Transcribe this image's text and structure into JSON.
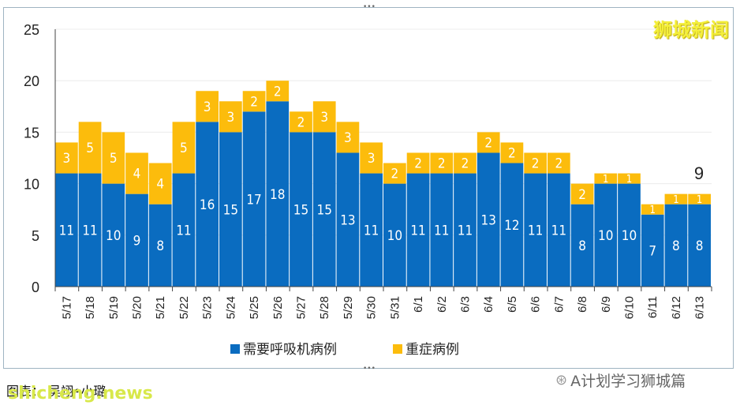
{
  "chart_data": {
    "type": "bar",
    "stacked": true,
    "categories": [
      "5/17",
      "5/18",
      "5/19",
      "5/20",
      "5/21",
      "5/22",
      "5/23",
      "5/24",
      "5/25",
      "5/26",
      "5/27",
      "5/28",
      "5/29",
      "5/30",
      "5/31",
      "6/1",
      "6/2",
      "6/3",
      "6/4",
      "6/5",
      "6/6",
      "6/7",
      "6/8",
      "6/9",
      "6/10",
      "6/11",
      "6/12",
      "6/13"
    ],
    "series": [
      {
        "name": "需要呼吸机病例",
        "color": "#0a6cc0",
        "values": [
          11,
          11,
          10,
          9,
          8,
          11,
          16,
          15,
          17,
          18,
          15,
          15,
          13,
          11,
          10,
          11,
          11,
          11,
          13,
          12,
          11,
          11,
          8,
          10,
          10,
          7,
          8,
          8
        ]
      },
      {
        "name": "重症病例",
        "color": "#fcbc0c",
        "values": [
          3,
          5,
          5,
          4,
          4,
          5,
          3,
          3,
          2,
          2,
          2,
          3,
          3,
          3,
          2,
          2,
          2,
          2,
          2,
          2,
          2,
          2,
          2,
          1,
          1,
          1,
          1,
          1
        ]
      }
    ],
    "ylim": [
      0,
      25
    ],
    "yticks": [
      0,
      5,
      10,
      15,
      20,
      25
    ],
    "grid": true,
    "legend_position": "bottom",
    "total_annotation": "9"
  },
  "watermarks": {
    "top_right": "狮城新闻",
    "source_note": "图表：   吴翊•小璐",
    "site": "shicheng.news",
    "wechat": "A计划学习狮城篇"
  }
}
